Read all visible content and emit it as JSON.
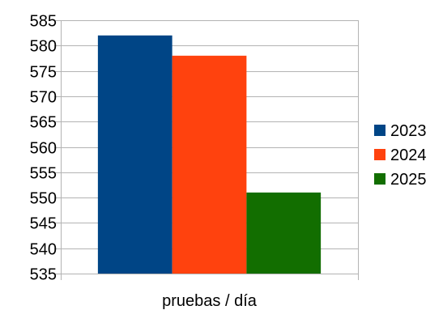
{
  "chart_data": {
    "type": "bar",
    "categories": [
      "pruebas / día"
    ],
    "series": [
      {
        "name": "2023",
        "values": [
          582
        ],
        "color": "#004586"
      },
      {
        "name": "2024",
        "values": [
          578
        ],
        "color": "#ff420e"
      },
      {
        "name": "2025",
        "values": [
          551
        ],
        "color": "#126e00"
      }
    ],
    "title": "",
    "xlabel": "",
    "ylabel": "",
    "ylim": [
      535,
      585
    ],
    "yticks": [
      535,
      540,
      545,
      550,
      555,
      560,
      565,
      570,
      575,
      580,
      585
    ],
    "grid": true,
    "legend_position": "right",
    "colors": {
      "grid": "#b3b3b3",
      "axis": "#b3b3b3",
      "text": "#000000"
    }
  }
}
